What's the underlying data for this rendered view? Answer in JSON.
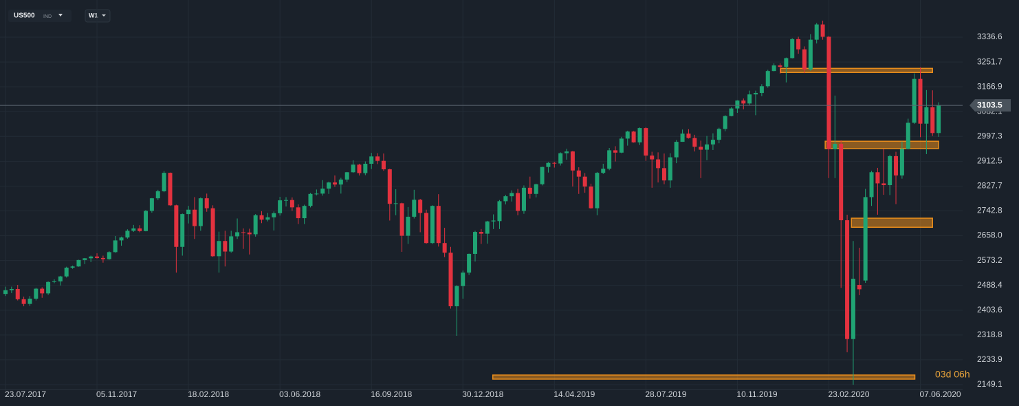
{
  "header": {
    "symbol": "US500",
    "market": "IND",
    "timeframe": "W1"
  },
  "chart_data": {
    "type": "candlestick",
    "categories": [
      "23.07.2017",
      null,
      null,
      null,
      null,
      null,
      null,
      null,
      null,
      null,
      null,
      null,
      null,
      null,
      null,
      "05.11.2017",
      null,
      null,
      null,
      null,
      null,
      null,
      null,
      null,
      null,
      null,
      null,
      null,
      null,
      null,
      "18.02.2018",
      null,
      null,
      null,
      null,
      null,
      null,
      null,
      null,
      null,
      null,
      null,
      null,
      null,
      null,
      "03.06.2018",
      null,
      null,
      null,
      null,
      null,
      null,
      null,
      null,
      null,
      null,
      null,
      null,
      null,
      null,
      "16.09.2018",
      null,
      null,
      null,
      null,
      null,
      null,
      null,
      null,
      null,
      null,
      null,
      null,
      null,
      null,
      "30.12.2018",
      null,
      null,
      null,
      null,
      null,
      null,
      null,
      null,
      null,
      null,
      null,
      null,
      null,
      null,
      "14.04.2019",
      null,
      null,
      null,
      null,
      null,
      null,
      null,
      null,
      null,
      null,
      null,
      null,
      null,
      null,
      "28.07.2019",
      null,
      null,
      null,
      null,
      null,
      null,
      null,
      null,
      null,
      null,
      null,
      null,
      null,
      null,
      "10.11.2019",
      null,
      null,
      null,
      null,
      null,
      null,
      null,
      null,
      null,
      null,
      null,
      null,
      null,
      null,
      "23.02.2020",
      null,
      null,
      null,
      null,
      null,
      null,
      null,
      null,
      null,
      null,
      null,
      null,
      null,
      null,
      "07.06.2020",
      null,
      null,
      null
    ],
    "open": [
      2459,
      2472,
      2476,
      2441,
      2425,
      2443,
      2477,
      2461,
      2500,
      2502,
      2519,
      2549,
      2553,
      2575,
      2581,
      2587,
      2582,
      2578,
      2602,
      2642,
      2652,
      2675,
      2683,
      2674,
      2743,
      2786,
      2810,
      2873,
      2762,
      2620,
      2732,
      2747,
      2691,
      2786,
      2752,
      2588,
      2640,
      2604,
      2656,
      2670,
      2669,
      2663,
      2728,
      2713,
      2721,
      2735,
      2779,
      2780,
      2755,
      2718,
      2760,
      2801,
      2802,
      2819,
      2840,
      2833,
      2850,
      2875,
      2901,
      2872,
      2904,
      2929,
      2914,
      2885,
      2767,
      2769,
      2658,
      2723,
      2781,
      2736,
      2633,
      2760,
      2633,
      2600,
      2417,
      2486,
      2532,
      2596,
      2671,
      2665,
      2707,
      2708,
      2776,
      2793,
      2804,
      2743,
      2822,
      2801,
      2834,
      2893,
      2907,
      2905,
      2940,
      2946,
      2881,
      2860,
      2826,
      2752,
      2873,
      2887,
      2950,
      2942,
      2990,
      3014,
      2977,
      3026,
      2932,
      2919,
      2889,
      2847,
      2926,
      2979,
      3007,
      2992,
      2962,
      2952,
      2970,
      2986,
      3023,
      3067,
      3093,
      3120,
      3110,
      3141,
      3146,
      3169,
      3221,
      3240,
      3235,
      3265,
      3330,
      3295,
      3226,
      3328,
      3380,
      3338,
      2954,
      2972,
      2711,
      2305,
      2490,
      2505,
      2790,
      2875,
      2837,
      2831,
      2930,
      2864,
      2955,
      3044,
      3194,
      3041,
      3097,
      3009
    ],
    "high": [
      2484,
      2484,
      2490,
      2450,
      2452,
      2480,
      2482,
      2502,
      2509,
      2521,
      2552,
      2556,
      2576,
      2582,
      2590,
      2598,
      2590,
      2605,
      2657,
      2655,
      2680,
      2695,
      2694,
      2746,
      2787,
      2815,
      2879,
      2874,
      2764,
      2734,
      2760,
      2790,
      2789,
      2802,
      2762,
      2672,
      2675,
      2675,
      2717,
      2683,
      2682,
      2732,
      2742,
      2736,
      2741,
      2791,
      2790,
      2789,
      2765,
      2764,
      2804,
      2816,
      2848,
      2843,
      2864,
      2856,
      2876,
      2916,
      2904,
      2912,
      2941,
      2940,
      2939,
      2887,
      2817,
      2771,
      2756,
      2815,
      2784,
      2747,
      2762,
      2800,
      2685,
      2620,
      2489,
      2539,
      2597,
      2675,
      2681,
      2709,
      2731,
      2780,
      2798,
      2813,
      2818,
      2830,
      2860,
      2836,
      2894,
      2910,
      2911,
      2943,
      2955,
      2948,
      2892,
      2872,
      2836,
      2876,
      2904,
      2958,
      2964,
      2996,
      3017,
      3016,
      3028,
      3029,
      2945,
      2943,
      2939,
      2940,
      2985,
      3021,
      3022,
      3003,
      2983,
      2999,
      3008,
      3027,
      3070,
      3097,
      3121,
      3127,
      3154,
      3154,
      3176,
      3225,
      3247,
      3247,
      3267,
      3333,
      3338,
      3305,
      3347,
      3385,
      3393,
      3340,
      3137,
      2984,
      2730,
      2640,
      2617,
      2818,
      2880,
      2890,
      2955,
      2935,
      2945,
      2980,
      3058,
      3213,
      3233,
      3156,
      3155,
      3114
    ],
    "low": [
      2452,
      2462,
      2437,
      2417,
      2418,
      2437,
      2446,
      2456,
      2496,
      2488,
      2515,
      2545,
      2552,
      2561,
      2568,
      2580,
      2566,
      2576,
      2600,
      2624,
      2648,
      2671,
      2670,
      2673,
      2737,
      2780,
      2807,
      2760,
      2532,
      2590,
      2700,
      2647,
      2675,
      2740,
      2586,
      2532,
      2553,
      2600,
      2647,
      2613,
      2594,
      2655,
      2701,
      2707,
      2676,
      2727,
      2758,
      2743,
      2698,
      2698,
      2755,
      2796,
      2795,
      2801,
      2825,
      2802,
      2842,
      2873,
      2864,
      2865,
      2886,
      2903,
      2880,
      2710,
      2728,
      2603,
      2630,
      2717,
      2670,
      2631,
      2630,
      2621,
      2585,
      2409,
      2316,
      2443,
      2524,
      2570,
      2630,
      2631,
      2681,
      2681,
      2765,
      2775,
      2728,
      2733,
      2785,
      2789,
      2830,
      2874,
      2891,
      2898,
      2918,
      2826,
      2801,
      2805,
      2750,
      2728,
      2869,
      2882,
      2912,
      2940,
      2966,
      2976,
      2968,
      2914,
      2822,
      2840,
      2834,
      2822,
      2906,
      2979,
      2990,
      2946,
      2855,
      2916,
      2951,
      2974,
      3015,
      3066,
      3078,
      3090,
      3105,
      3070,
      3135,
      3164,
      3220,
      3212,
      3182,
      3264,
      3280,
      3214,
      3222,
      3315,
      3328,
      2855,
      2855,
      2480,
      2260,
      2149,
      2455,
      2497,
      2760,
      2730,
      2798,
      2797,
      2766,
      2853,
      2953,
      3040,
      2995,
      2937,
      2999,
      2996
    ],
    "close": [
      2472,
      2476,
      2441,
      2425,
      2443,
      2477,
      2461,
      2500,
      2502,
      2519,
      2549,
      2553,
      2575,
      2581,
      2587,
      2582,
      2578,
      2602,
      2642,
      2652,
      2675,
      2683,
      2674,
      2743,
      2786,
      2810,
      2873,
      2762,
      2620,
      2732,
      2747,
      2691,
      2786,
      2752,
      2588,
      2640,
      2604,
      2656,
      2670,
      2669,
      2663,
      2728,
      2713,
      2721,
      2735,
      2779,
      2780,
      2755,
      2718,
      2760,
      2801,
      2802,
      2819,
      2840,
      2833,
      2850,
      2875,
      2901,
      2872,
      2904,
      2929,
      2914,
      2885,
      2767,
      2769,
      2658,
      2723,
      2781,
      2736,
      2633,
      2760,
      2633,
      2600,
      2417,
      2486,
      2532,
      2596,
      2671,
      2665,
      2707,
      2710,
      2776,
      2793,
      2804,
      2743,
      2822,
      2801,
      2834,
      2893,
      2907,
      2905,
      2940,
      2946,
      2881,
      2860,
      2826,
      2752,
      2873,
      2887,
      2950,
      2942,
      2990,
      3014,
      2977,
      3026,
      2932,
      2919,
      2889,
      2847,
      2926,
      2979,
      3007,
      2992,
      2962,
      2952,
      2970,
      2986,
      3023,
      3067,
      3093,
      3120,
      3110,
      3141,
      3146,
      3169,
      3221,
      3240,
      3235,
      3265,
      3330,
      3295,
      3226,
      3328,
      3380,
      3338,
      2954,
      2972,
      2711,
      2305,
      2511,
      2475,
      2790,
      2875,
      2837,
      2831,
      2930,
      2864,
      2955,
      3044,
      3194,
      3041,
      3097,
      3009,
      3103.5
    ],
    "up_color": "#20a474",
    "down_color": "#e3323f",
    "ylim": [
      2127.9,
      3463.6
    ],
    "yticks": [
      2149.1,
      2233.9,
      2318.8,
      2403.6,
      2488.4,
      2573.2,
      {
        "value": 2658,
        "label": "2658.0"
      },
      2742.8,
      2827.7,
      2912.5,
      2997.3,
      3082.1,
      3166.9,
      3251.7,
      3336.6
    ],
    "grid": true,
    "last_price": 3103.5,
    "zones": [
      {
        "low": 3216,
        "high": 3230
      },
      {
        "low": 2956,
        "high": 2981
      },
      {
        "low": 2687,
        "high": 2718
      },
      {
        "low": 2168,
        "high": 2182
      }
    ],
    "zone_color": "#e88d1c",
    "countdown": "03d 06h"
  }
}
